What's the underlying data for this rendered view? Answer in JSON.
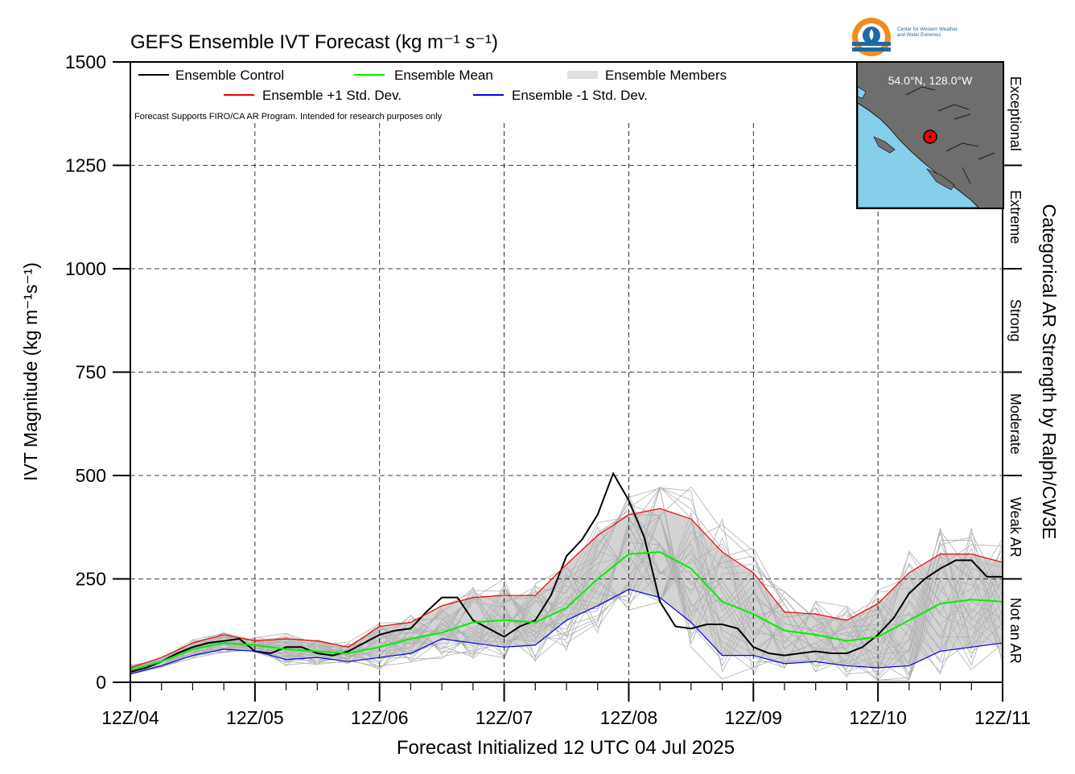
{
  "chart_data": {
    "type": "line",
    "title": "GEFS Ensemble IVT Forecast (kg m⁻¹ s⁻¹)",
    "xlabel": "Forecast Initialized 12 UTC 04 Jul 2025",
    "ylabel": "IVT Magnitude (kg m⁻¹s⁻¹)",
    "right_label": "Categorical AR Strength by Ralph/CW3E",
    "note": "Forecast Supports FIRO/CA AR Program. Intended for research purposes only",
    "xlim": [
      0,
      168
    ],
    "ylim": [
      0,
      1500
    ],
    "grid": true,
    "legend_position": "top-left",
    "x_tick_labels": [
      "12Z/04",
      "12Z/05",
      "12Z/06",
      "12Z/07",
      "12Z/08",
      "12Z/09",
      "12Z/10",
      "12Z/11"
    ],
    "y_tick_labels": [
      "0",
      "250",
      "500",
      "750",
      "1000",
      "1250",
      "1500"
    ],
    "categories": [
      {
        "label": "Not an AR",
        "range": [
          0,
          250
        ]
      },
      {
        "label": "Weak AR",
        "range": [
          250,
          500
        ]
      },
      {
        "label": "Moderate",
        "range": [
          500,
          750
        ]
      },
      {
        "label": "Strong",
        "range": [
          750,
          1000
        ]
      },
      {
        "label": "Extreme",
        "range": [
          1000,
          1250
        ]
      },
      {
        "label": "Exceptional",
        "range": [
          1250,
          1500
        ]
      }
    ],
    "legend": [
      {
        "label": "Ensemble Control",
        "color": "#000000"
      },
      {
        "label": "Ensemble Mean",
        "color": "#00ee00"
      },
      {
        "label": "Ensemble Members",
        "color": "#aaaaaa"
      },
      {
        "label": "Ensemble +1 Std. Dev.",
        "color": "#ee0000"
      },
      {
        "label": "Ensemble -1 Std. Dev.",
        "color": "#0000ee"
      }
    ],
    "x_hours": [
      0,
      6,
      12,
      18,
      24,
      30,
      36,
      42,
      48,
      54,
      60,
      66,
      72,
      78,
      84,
      90,
      96,
      102,
      108,
      114,
      120,
      126,
      132,
      138,
      144,
      150,
      156,
      162,
      168
    ],
    "series": [
      {
        "name": "Ensemble Control",
        "color": "#000000",
        "x": [
          0,
          3,
          6,
          9,
          12,
          15,
          18,
          21,
          24,
          27,
          30,
          33,
          36,
          39,
          42,
          45,
          48,
          51,
          54,
          57,
          60,
          63,
          66,
          69,
          72,
          75,
          78,
          81,
          84,
          87,
          90,
          93,
          96,
          99,
          102,
          105,
          108,
          111,
          114,
          117,
          120,
          123,
          126,
          129,
          132,
          135,
          138,
          141,
          144,
          147,
          150,
          153,
          156,
          159,
          162,
          165,
          168
        ],
        "values": [
          25,
          35,
          50,
          70,
          85,
          95,
          100,
          105,
          75,
          70,
          85,
          85,
          70,
          65,
          75,
          95,
          115,
          125,
          130,
          170,
          205,
          205,
          150,
          130,
          110,
          135,
          150,
          210,
          305,
          345,
          405,
          505,
          440,
          350,
          195,
          135,
          130,
          140,
          140,
          130,
          85,
          70,
          65,
          70,
          75,
          70,
          70,
          85,
          115,
          155,
          215,
          250,
          275,
          295,
          295,
          255,
          255
        ]
      },
      {
        "name": "Ensemble Mean",
        "color": "#00ee00",
        "x": [
          0,
          6,
          12,
          18,
          24,
          30,
          36,
          42,
          48,
          54,
          60,
          66,
          72,
          78,
          84,
          90,
          96,
          102,
          108,
          114,
          120,
          126,
          132,
          138,
          144,
          150,
          156,
          162,
          168
        ],
        "values": [
          30,
          50,
          80,
          95,
          90,
          80,
          75,
          70,
          85,
          105,
          120,
          145,
          150,
          145,
          180,
          250,
          310,
          315,
          275,
          195,
          165,
          125,
          115,
          100,
          110,
          150,
          190,
          200,
          195
        ]
      },
      {
        "name": "Ensemble +1 Std. Dev.",
        "color": "#ee0000",
        "x": [
          0,
          6,
          12,
          18,
          24,
          30,
          36,
          42,
          48,
          54,
          60,
          66,
          72,
          78,
          84,
          90,
          96,
          102,
          108,
          114,
          120,
          126,
          132,
          138,
          144,
          150,
          156,
          162,
          168
        ],
        "values": [
          35,
          60,
          95,
          115,
          100,
          105,
          100,
          85,
          135,
          145,
          185,
          205,
          210,
          210,
          285,
          355,
          405,
          420,
          395,
          315,
          265,
          170,
          165,
          150,
          190,
          265,
          310,
          310,
          290
        ]
      },
      {
        "name": "Ensemble -1 Std. Dev.",
        "color": "#0000ee",
        "x": [
          0,
          6,
          12,
          18,
          24,
          30,
          36,
          42,
          48,
          54,
          60,
          66,
          72,
          78,
          84,
          90,
          96,
          102,
          108,
          114,
          120,
          126,
          132,
          138,
          144,
          150,
          156,
          162,
          168
        ],
        "values": [
          20,
          40,
          65,
          80,
          75,
          55,
          60,
          50,
          60,
          70,
          105,
          95,
          85,
          90,
          150,
          185,
          225,
          205,
          145,
          65,
          65,
          45,
          50,
          40,
          35,
          40,
          75,
          85,
          95
        ]
      }
    ]
  },
  "inset_map": {
    "label": "54.0°N, 128.0°W",
    "water_color": "#87ceeb",
    "land_color": "#6e6e6e",
    "marker_color": "#ff0000"
  },
  "logo": {
    "text_line1": "Center for Western Weather",
    "text_line2": "and Water Extremes"
  }
}
